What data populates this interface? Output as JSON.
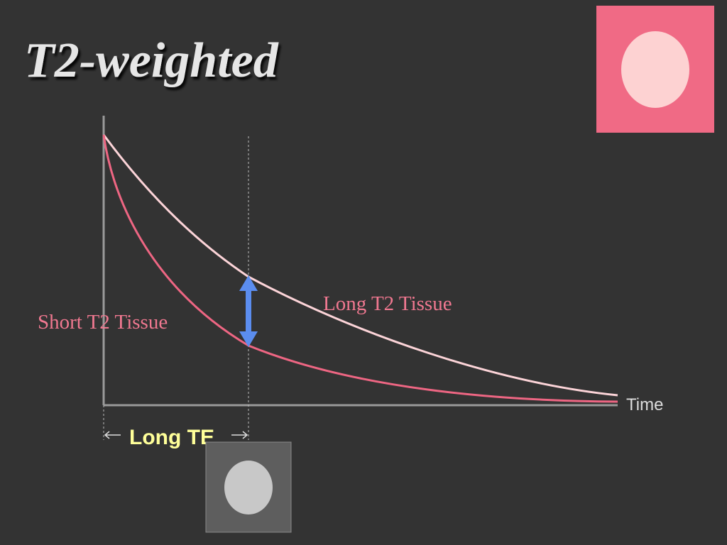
{
  "title": "T2-weighted",
  "curves": {
    "long": {
      "label": "Long T2 Tissue"
    },
    "short": {
      "label": "Short T2 Tissue"
    }
  },
  "x_axis_label": "Time",
  "interval_label": "Long TE"
}
